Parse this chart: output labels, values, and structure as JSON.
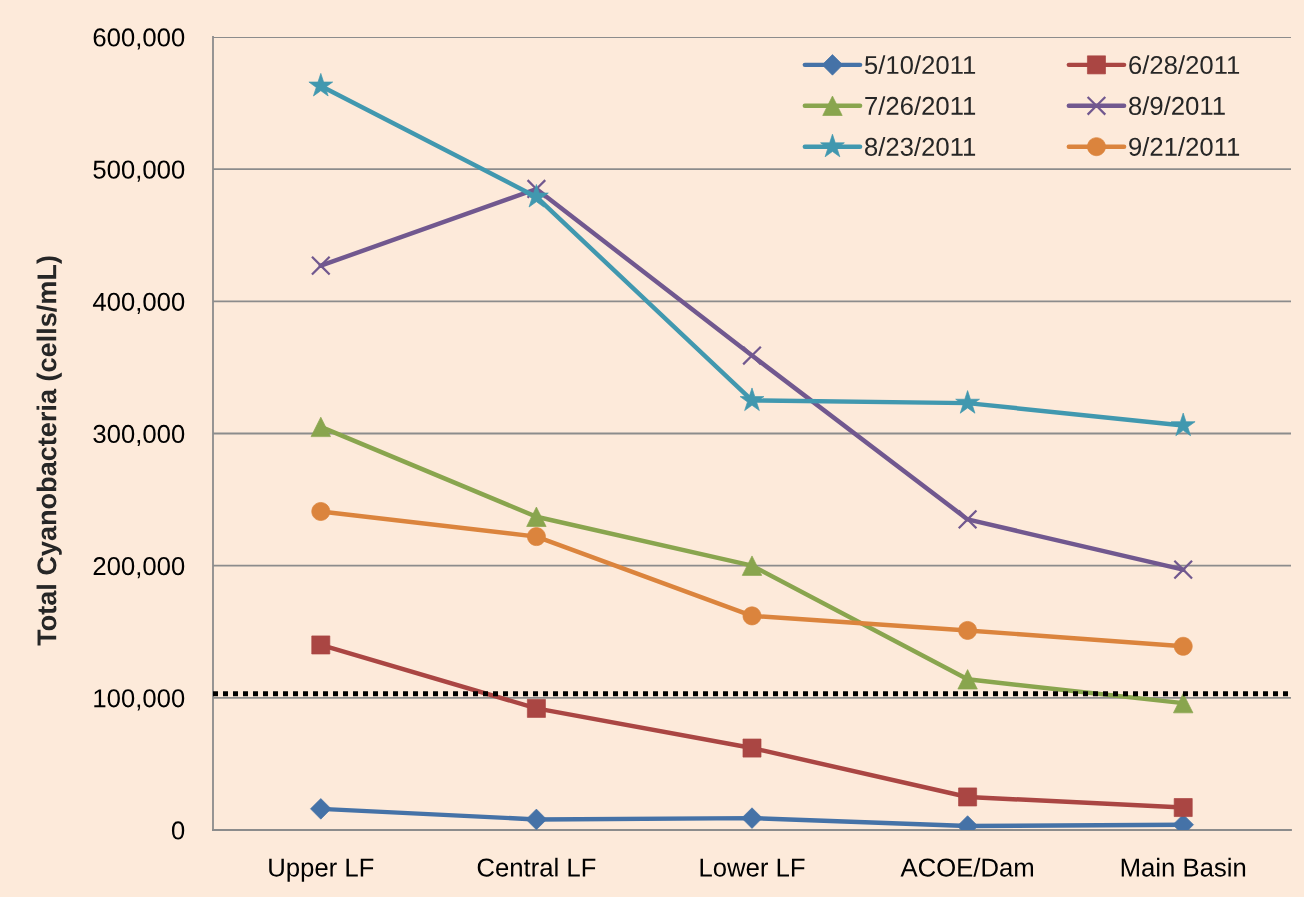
{
  "chart_data": {
    "type": "line",
    "ylabel": "Total Cyanobacteria (cells/mL)",
    "categories": [
      "Upper LF",
      "Central LF",
      "Lower LF",
      "ACOE/Dam",
      "Main Basin"
    ],
    "series": [
      {
        "name": "5/10/2011",
        "color": "#4572a7",
        "marker": "diamond",
        "values": [
          16000,
          8000,
          9000,
          3000,
          4000
        ]
      },
      {
        "name": "6/28/2011",
        "color": "#aa4643",
        "marker": "square",
        "values": [
          140000,
          92000,
          62000,
          25000,
          17000
        ]
      },
      {
        "name": "7/26/2011",
        "color": "#89a54e",
        "marker": "triangle",
        "values": [
          305000,
          237000,
          200000,
          114000,
          96000
        ]
      },
      {
        "name": "8/9/2011",
        "color": "#71588f",
        "marker": "cross",
        "values": [
          427000,
          485000,
          359000,
          235000,
          197000
        ]
      },
      {
        "name": "8/23/2011",
        "color": "#4198af",
        "marker": "star",
        "values": [
          563000,
          479000,
          325000,
          323000,
          306000
        ]
      },
      {
        "name": "9/21/2011",
        "color": "#db843d",
        "marker": "circle",
        "values": [
          241000,
          222000,
          162000,
          151000,
          139000
        ]
      }
    ],
    "ylim": [
      0,
      600000
    ],
    "yticks": [
      0,
      {
        "value": 100000,
        "label": "100,000"
      },
      {
        "value": 200000,
        "label": "200,000"
      },
      {
        "value": 300000,
        "label": "300,000"
      },
      {
        "value": 400000,
        "label": "400,000"
      },
      {
        "value": 500000,
        "label": "500,000"
      },
      {
        "value": 600000,
        "label": "600,000"
      }
    ],
    "ref_lines": [
      {
        "axis": "y",
        "value": 103000,
        "color": "#000000",
        "line_style": "dotted"
      }
    ],
    "grid": "y",
    "legend": "top right",
    "line_style": "solid"
  }
}
